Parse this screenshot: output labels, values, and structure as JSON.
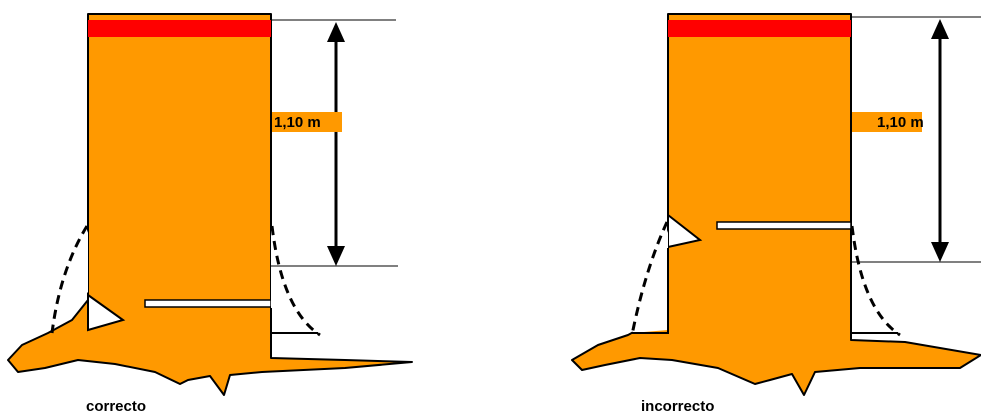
{
  "colors": {
    "trunk": "#FF9900",
    "band": "#FF0000",
    "outline": "#000000",
    "cut": "#FFFFFF"
  },
  "figures": [
    {
      "id": "correct",
      "height_label": "1,10 m",
      "caption": "correcto"
    },
    {
      "id": "incorrect",
      "height_label": "1,10 m",
      "caption": "incorrecto"
    }
  ]
}
